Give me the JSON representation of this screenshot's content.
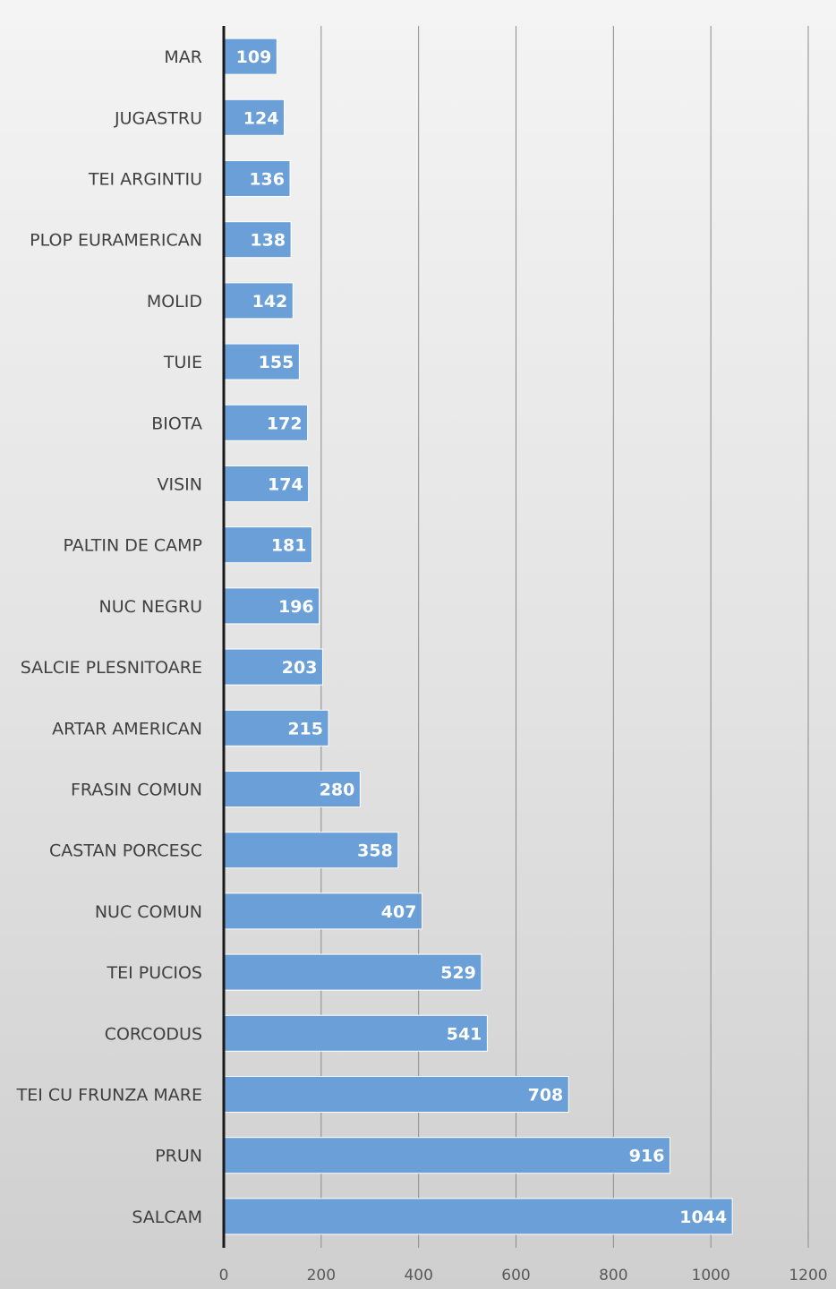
{
  "chart_data": {
    "type": "bar",
    "orientation": "horizontal",
    "categories": [
      "MAR",
      "JUGASTRU",
      "TEI ARGINTIU",
      "PLOP EURAMERICAN",
      "MOLID",
      "TUIE",
      "BIOTA",
      "VISIN",
      "PALTIN DE CAMP",
      "NUC NEGRU",
      "SALCIE PLESNITOARE",
      "ARTAR AMERICAN",
      "FRASIN COMUN",
      "CASTAN PORCESC",
      "NUC COMUN",
      "TEI PUCIOS",
      "CORCODUS",
      "TEI CU FRUNZA MARE",
      "PRUN",
      "SALCAM"
    ],
    "values": [
      109,
      124,
      136,
      138,
      142,
      155,
      172,
      174,
      181,
      196,
      203,
      215,
      280,
      358,
      407,
      529,
      541,
      708,
      916,
      1044
    ],
    "xticks": [
      0,
      200,
      400,
      600,
      800,
      1000,
      1200
    ],
    "xlim": [
      0,
      1200
    ],
    "title": "",
    "xlabel": "",
    "ylabel": "",
    "grid": true,
    "legend": "none",
    "bar_color": "#6a9fd7",
    "data_label_color": "#ffffff"
  }
}
